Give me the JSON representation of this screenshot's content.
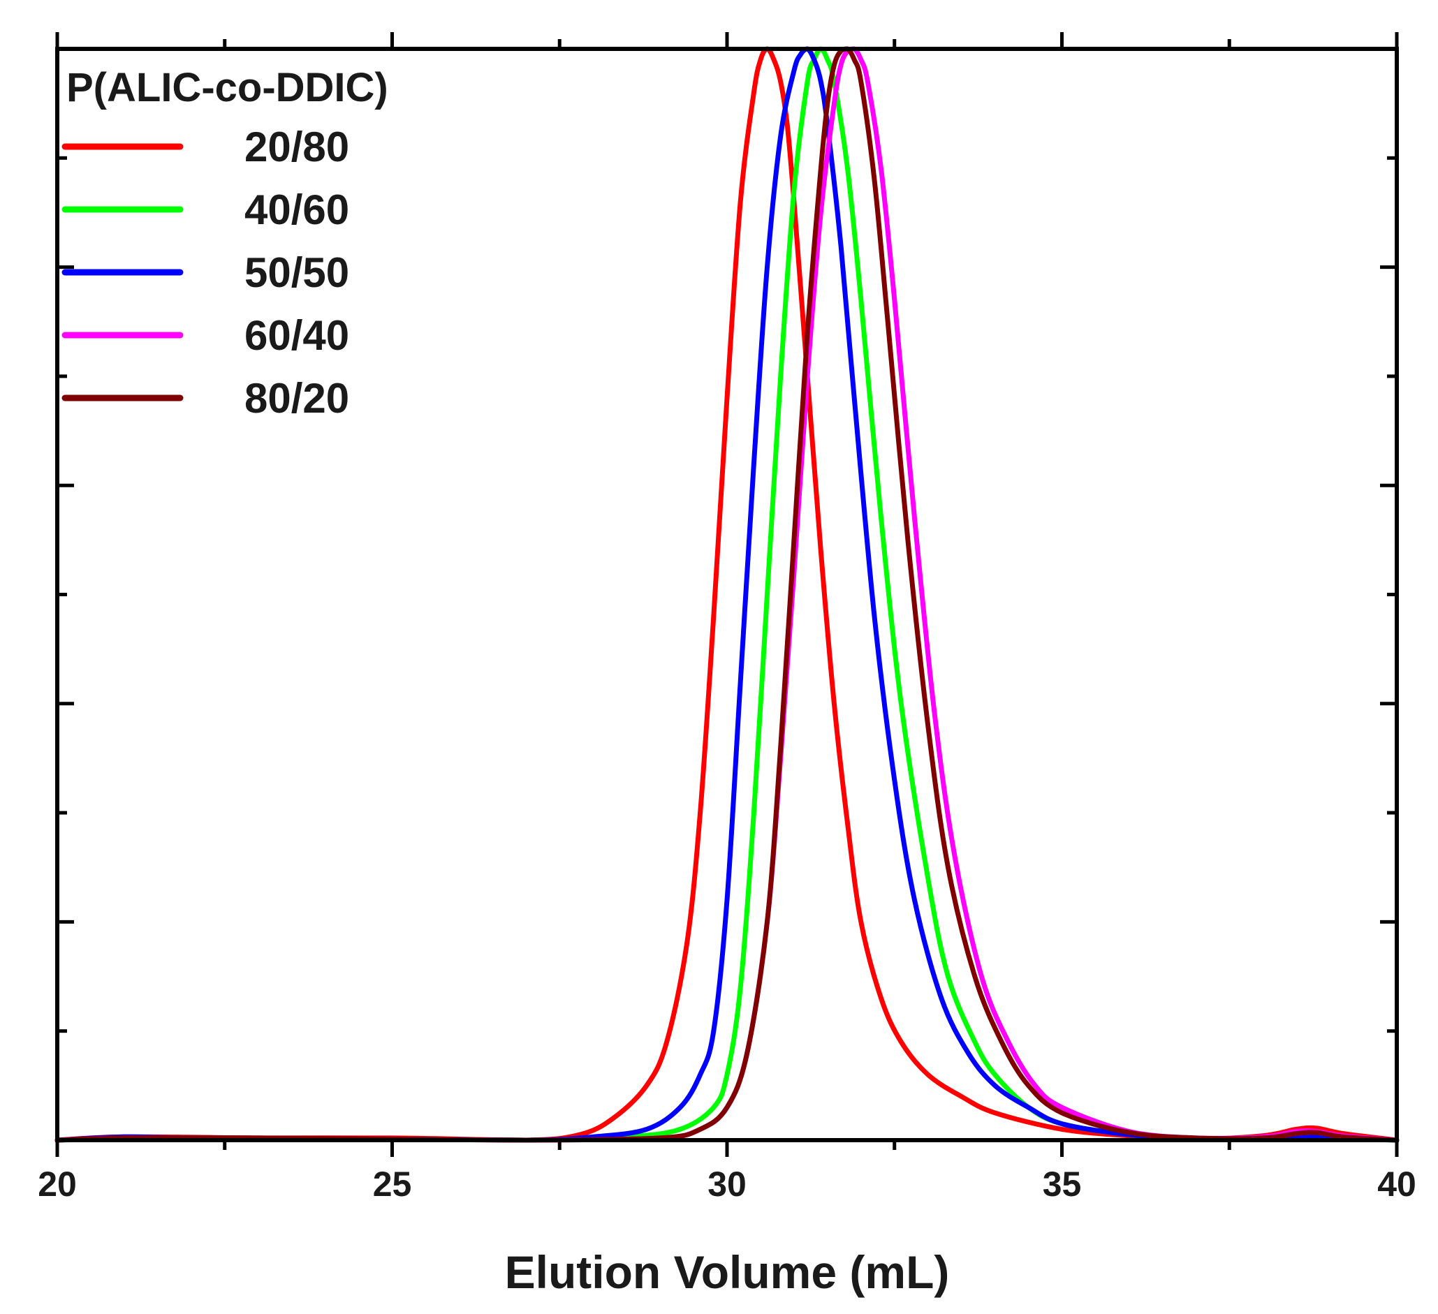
{
  "chart_data": {
    "type": "line",
    "title": "",
    "xlabel": "Elution Volume (mL)",
    "ylabel": "",
    "xlim": [
      20,
      40
    ],
    "ylim": [
      0,
      1
    ],
    "x_ticks": [
      20,
      25,
      30,
      35,
      40
    ],
    "x_tick_labels": [
      "20",
      "25",
      "30",
      "35",
      "40"
    ],
    "y_tick_labels_shown": false,
    "grid": false,
    "legend": {
      "title": "P(ALIC-co-DDIC)",
      "placement": "top-left"
    },
    "series": [
      {
        "name": "20/80",
        "color": "#ff0000",
        "x": [
          20.0,
          21.0,
          23.0,
          25.0,
          27.0,
          27.8,
          28.3,
          28.8,
          29.1,
          29.4,
          29.6,
          29.8,
          30.0,
          30.2,
          30.4,
          30.5,
          30.6,
          30.7,
          30.8,
          30.9,
          31.0,
          31.2,
          31.4,
          31.6,
          31.8,
          32.0,
          32.3,
          32.6,
          33.0,
          33.5,
          34.0,
          35.0,
          36.0,
          37.0,
          38.0,
          38.5,
          38.8,
          39.2,
          40.0
        ],
        "y": [
          0.0,
          0.003,
          0.002,
          0.002,
          0.0,
          0.005,
          0.02,
          0.05,
          0.09,
          0.18,
          0.3,
          0.48,
          0.68,
          0.86,
          0.96,
          0.99,
          1.0,
          0.99,
          0.97,
          0.93,
          0.86,
          0.7,
          0.54,
          0.4,
          0.29,
          0.2,
          0.13,
          0.09,
          0.06,
          0.04,
          0.025,
          0.01,
          0.004,
          0.001,
          0.004,
          0.01,
          0.011,
          0.006,
          0.0
        ]
      },
      {
        "name": "40/60",
        "color": "#00ff00",
        "x": [
          20.0,
          22.0,
          25.0,
          27.0,
          28.5,
          29.3,
          29.8,
          30.0,
          30.2,
          30.4,
          30.6,
          30.8,
          31.0,
          31.2,
          31.3,
          31.4,
          31.5,
          31.6,
          31.8,
          32.0,
          32.3,
          32.6,
          33.0,
          33.3,
          33.7,
          34.0,
          34.5,
          35.0,
          36.0,
          37.0,
          38.0,
          38.5,
          38.8,
          39.2,
          40.0
        ],
        "y": [
          0.0,
          0.002,
          0.001,
          0.0,
          0.003,
          0.01,
          0.03,
          0.06,
          0.14,
          0.3,
          0.5,
          0.7,
          0.87,
          0.97,
          0.99,
          1.0,
          0.99,
          0.97,
          0.89,
          0.77,
          0.57,
          0.4,
          0.24,
          0.15,
          0.09,
          0.06,
          0.03,
          0.015,
          0.005,
          0.001,
          0.002,
          0.004,
          0.003,
          0.001,
          0.0
        ]
      },
      {
        "name": "50/50",
        "color": "#0000ff",
        "x": [
          20.0,
          21.0,
          22.0,
          25.0,
          27.0,
          28.0,
          28.8,
          29.3,
          29.6,
          29.8,
          30.0,
          30.2,
          30.4,
          30.6,
          30.8,
          31.0,
          31.1,
          31.2,
          31.3,
          31.4,
          31.5,
          31.7,
          31.9,
          32.2,
          32.5,
          32.8,
          33.2,
          33.6,
          34.0,
          34.5,
          35.0,
          36.0,
          37.0,
          38.0,
          38.5,
          38.8,
          39.2,
          40.0
        ],
        "y": [
          0.0,
          0.003,
          0.002,
          0.001,
          0.0,
          0.003,
          0.01,
          0.03,
          0.06,
          0.1,
          0.22,
          0.42,
          0.62,
          0.8,
          0.92,
          0.98,
          0.995,
          1.0,
          0.99,
          0.97,
          0.93,
          0.82,
          0.68,
          0.48,
          0.33,
          0.22,
          0.13,
          0.08,
          0.05,
          0.03,
          0.015,
          0.005,
          0.001,
          0.001,
          0.003,
          0.004,
          0.002,
          0.0
        ]
      },
      {
        "name": "60/40",
        "color": "#ff00ff",
        "x": [
          20.0,
          21.0,
          23.0,
          25.0,
          27.0,
          29.0,
          29.6,
          30.0,
          30.3,
          30.6,
          30.8,
          31.0,
          31.2,
          31.4,
          31.6,
          31.7,
          31.8,
          31.9,
          32.0,
          32.1,
          32.3,
          32.5,
          32.8,
          33.1,
          33.4,
          33.8,
          34.2,
          34.6,
          35.0,
          36.0,
          37.0,
          38.0,
          38.5,
          38.8,
          39.2,
          40.0
        ],
        "y": [
          0.0,
          0.002,
          0.002,
          0.001,
          0.0,
          0.002,
          0.01,
          0.03,
          0.08,
          0.2,
          0.35,
          0.52,
          0.7,
          0.85,
          0.95,
          0.985,
          0.998,
          1.0,
          0.99,
          0.97,
          0.89,
          0.77,
          0.57,
          0.39,
          0.26,
          0.15,
          0.09,
          0.05,
          0.03,
          0.008,
          0.002,
          0.003,
          0.008,
          0.008,
          0.004,
          0.0
        ]
      },
      {
        "name": "80/20",
        "color": "#800000",
        "x": [
          20.0,
          21.0,
          23.0,
          25.0,
          27.0,
          29.0,
          29.6,
          30.0,
          30.3,
          30.6,
          30.8,
          31.0,
          31.2,
          31.4,
          31.5,
          31.6,
          31.7,
          31.8,
          31.9,
          32.0,
          32.2,
          32.4,
          32.7,
          33.0,
          33.3,
          33.7,
          34.1,
          34.5,
          35.0,
          36.0,
          37.0,
          38.0,
          38.5,
          38.8,
          39.2,
          40.0
        ],
        "y": [
          0.0,
          0.002,
          0.002,
          0.001,
          0.0,
          0.002,
          0.01,
          0.03,
          0.08,
          0.2,
          0.36,
          0.55,
          0.74,
          0.89,
          0.95,
          0.985,
          0.998,
          1.0,
          0.99,
          0.97,
          0.88,
          0.75,
          0.55,
          0.38,
          0.25,
          0.15,
          0.09,
          0.05,
          0.025,
          0.007,
          0.002,
          0.002,
          0.006,
          0.007,
          0.003,
          0.0
        ]
      }
    ]
  }
}
